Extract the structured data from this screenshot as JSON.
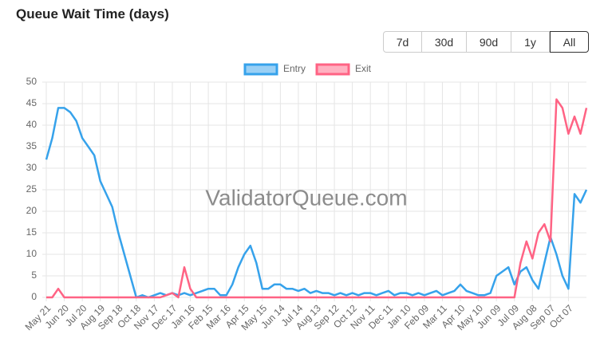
{
  "chart_data": {
    "type": "line",
    "title": "Queue Wait Time (days)",
    "watermark": "ValidatorQueue.com",
    "buttons": [
      "7d",
      "30d",
      "90d",
      "1y",
      "All"
    ],
    "active_button": 4,
    "categories": [
      "May 21",
      null,
      null,
      "Jun 20",
      null,
      null,
      "Jul 20",
      null,
      null,
      "Aug 19",
      null,
      null,
      "Sep 18",
      null,
      null,
      "Oct 18",
      null,
      null,
      "Nov 17",
      null,
      null,
      "Dec 17",
      null,
      null,
      "Jan 16",
      null,
      null,
      "Feb 15",
      null,
      null,
      "Mar 16",
      null,
      null,
      "Apr 15",
      null,
      null,
      "May 15",
      null,
      null,
      "Jun 14",
      null,
      null,
      "Jul 14",
      null,
      null,
      "Aug 13",
      null,
      null,
      "Sep 12",
      null,
      null,
      "Oct 12",
      null,
      null,
      "Nov 11",
      null,
      null,
      "Dec 11",
      null,
      null,
      "Jan 10",
      null,
      null,
      "Feb 09",
      null,
      null,
      "Mar 11",
      null,
      null,
      "Apr 10",
      null,
      null,
      "May 10",
      null,
      null,
      "Jun 09",
      null,
      null,
      "Jul 09",
      null,
      null,
      "Aug 08",
      null,
      null,
      "Sep 07",
      null,
      null,
      "Oct 07",
      null,
      null,
      null
    ],
    "series": [
      {
        "name": "Entry",
        "color": "#36a2eb",
        "values": [
          32,
          37,
          44,
          44,
          43,
          41,
          37,
          35,
          33,
          27,
          24,
          21,
          15,
          10,
          5,
          0,
          0.5,
          0,
          0.5,
          1,
          0.5,
          1,
          0.5,
          1,
          0.5,
          1,
          1.5,
          2,
          2,
          0.5,
          0.5,
          3,
          7,
          10,
          12,
          8,
          2,
          2,
          3,
          3,
          2,
          2,
          1.5,
          2,
          1,
          1.5,
          1,
          1,
          0.5,
          1,
          0.5,
          1,
          0.5,
          1,
          1,
          0.5,
          1,
          1.5,
          0.5,
          1,
          1,
          0.5,
          1,
          0.5,
          1,
          1.5,
          0.5,
          1,
          1.5,
          3,
          1.5,
          1,
          0.5,
          0.5,
          1,
          5,
          6,
          7,
          3,
          6,
          7,
          4,
          2,
          8,
          14,
          10,
          5,
          2,
          24,
          22,
          25
        ]
      },
      {
        "name": "Exit",
        "color": "#ff6384",
        "values": [
          0,
          0,
          2,
          0,
          0,
          0,
          0,
          0,
          0,
          0,
          0,
          0,
          0,
          0,
          0,
          0,
          0,
          0,
          0,
          0,
          0.5,
          1,
          0,
          7,
          2,
          0,
          0,
          0,
          0,
          0,
          0,
          0,
          0,
          0,
          0,
          0,
          0,
          0,
          0,
          0,
          0,
          0,
          0,
          0,
          0,
          0,
          0,
          0,
          0,
          0,
          0,
          0,
          0,
          0,
          0,
          0,
          0,
          0,
          0,
          0,
          0,
          0,
          0,
          0,
          0,
          0,
          0,
          0,
          0,
          0,
          0,
          0,
          0,
          0,
          0,
          0,
          0,
          0,
          0,
          8,
          13,
          9,
          15,
          17,
          13,
          46,
          44,
          38,
          42,
          38,
          44
        ]
      }
    ],
    "ylim": [
      0,
      50
    ],
    "yticks": [
      0,
      5,
      10,
      15,
      20,
      25,
      30,
      35,
      40,
      45,
      50
    ],
    "grid": true,
    "legend": "top"
  }
}
